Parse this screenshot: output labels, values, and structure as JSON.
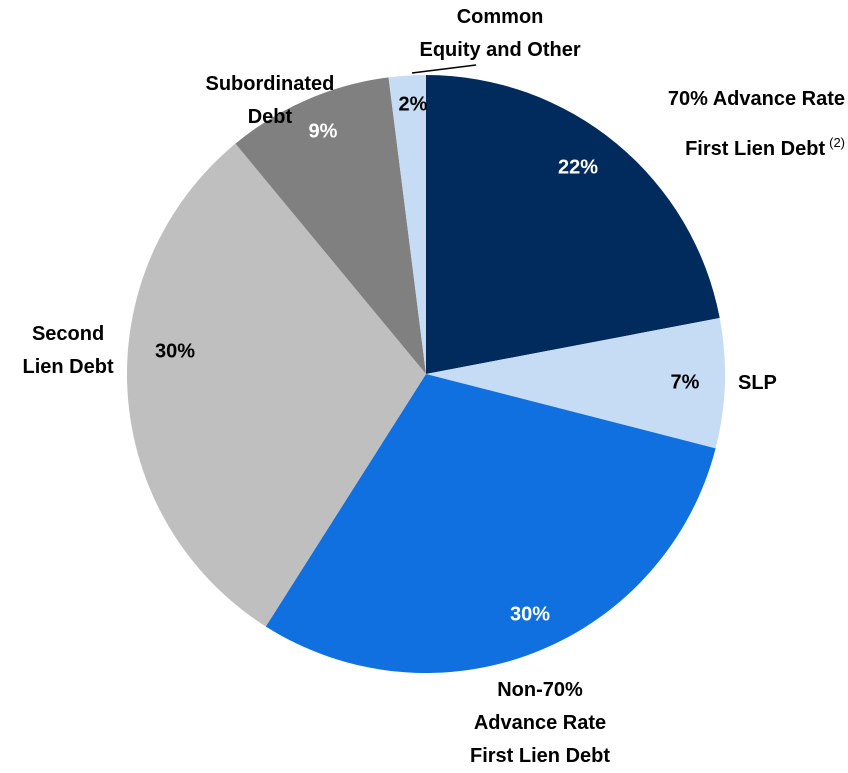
{
  "chart_data": {
    "type": "pie",
    "categories": [
      "70% Advance Rate\nFirst Lien Debt",
      "SLP",
      "Non-70%\nAdvance Rate\nFirst Lien Debt",
      "Second\nLien Debt",
      "Subordinated\nDebt",
      "Common\nEquity and Other"
    ],
    "footnotes": [
      "(2)",
      null,
      null,
      null,
      null,
      null
    ],
    "values": [
      22,
      7,
      30,
      30,
      9,
      2
    ],
    "value_labels": [
      "22%",
      "7%",
      "30%",
      "30%",
      "9%",
      "2%"
    ],
    "colors": [
      "#002b5c",
      "#c6dcf5",
      "#1170e0",
      "#bfbfbf",
      "#808080",
      "#c6dcf5"
    ]
  }
}
